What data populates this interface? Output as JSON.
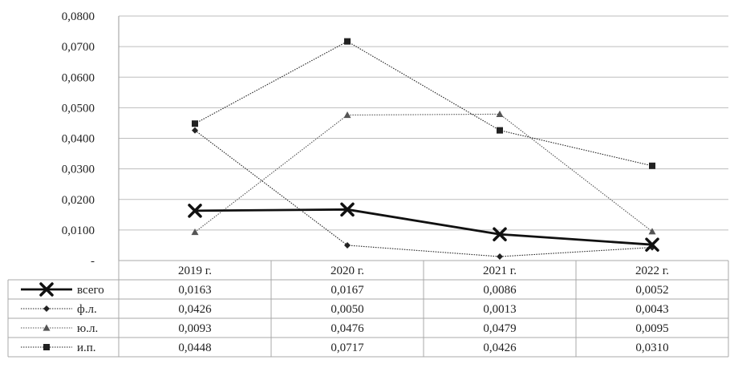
{
  "chart_data": {
    "type": "line",
    "title": "",
    "xlabel": "",
    "ylabel": "",
    "categories": [
      "2019 г.",
      "2020 г.",
      "2021 г.",
      "2022 г."
    ],
    "ylim": [
      0,
      0.08
    ],
    "yticks": [
      {
        "value": 0,
        "label": "-"
      },
      {
        "value": 0.01,
        "label": "0,0100"
      },
      {
        "value": 0.02,
        "label": "0,0200"
      },
      {
        "value": 0.03,
        "label": "0,0300"
      },
      {
        "value": 0.04,
        "label": "0,0400"
      },
      {
        "value": 0.05,
        "label": "0,0500"
      },
      {
        "value": 0.06,
        "label": "0,0600"
      },
      {
        "value": 0.07,
        "label": "0,0700"
      },
      {
        "value": 0.08,
        "label": "0,0800"
      }
    ],
    "grid": true,
    "legend": "data-table below chart",
    "series": [
      {
        "name": "всего",
        "marker": "x",
        "style": "solid-bold",
        "color": "#111111",
        "values": [
          0.0163,
          0.0167,
          0.0086,
          0.0052
        ],
        "labels": [
          "0,0163",
          "0,0167",
          "0,0086",
          "0,0052"
        ]
      },
      {
        "name": "ф.л.",
        "marker": "diamond",
        "style": "dotted",
        "color": "#222222",
        "values": [
          0.0426,
          0.005,
          0.0013,
          0.0043
        ],
        "labels": [
          "0,0426",
          "0,0050",
          "0,0013",
          "0,0043"
        ]
      },
      {
        "name": "ю.л.",
        "marker": "triangle",
        "style": "dotted",
        "color": "#555555",
        "values": [
          0.0093,
          0.0476,
          0.0479,
          0.0095
        ],
        "labels": [
          "0,0093",
          "0,0476",
          "0,0479",
          "0,0095"
        ]
      },
      {
        "name": "и.п.",
        "marker": "square",
        "style": "dotted",
        "color": "#222222",
        "values": [
          0.0448,
          0.0717,
          0.0426,
          0.031
        ],
        "labels": [
          "0,0448",
          "0,0717",
          "0,0426",
          "0,0310"
        ]
      }
    ]
  }
}
